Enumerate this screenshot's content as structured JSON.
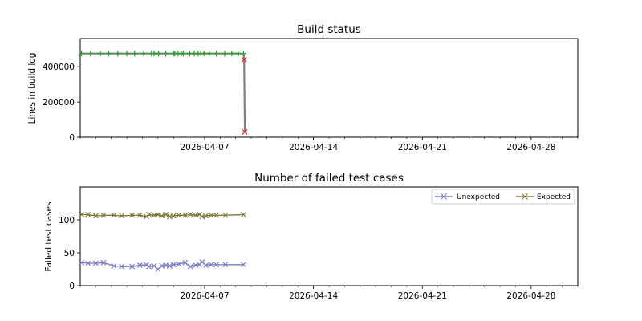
{
  "chart_data": [
    {
      "type": "line",
      "title": "Build status",
      "xlabel": "",
      "ylabel": "Lines in build log",
      "xlim": [
        "2026-03-30",
        "2026-05-01"
      ],
      "ylim": [
        0,
        560000
      ],
      "yticks": [
        0,
        200000,
        400000
      ],
      "xticks": [
        "2026-04-07",
        "2026-04-14",
        "2026-04-21",
        "2026-04-28"
      ],
      "grid": false,
      "colors": {
        "ok": "#2ca02c",
        "failed": "#d62728",
        "line": "#808080"
      },
      "series": [
        {
          "marker": "plus",
          "color": "#2ca02c",
          "points": [
            [
              "2026-03-30T02:00",
              475000
            ],
            [
              "2026-03-30T16:00",
              475000
            ],
            [
              "2026-03-31T07:00",
              475000
            ],
            [
              "2026-03-31T20:00",
              475000
            ],
            [
              "2026-04-01T10:00",
              475000
            ],
            [
              "2026-04-02T00:00",
              475000
            ],
            [
              "2026-04-02T12:00",
              475000
            ],
            [
              "2026-04-03T02:00",
              475000
            ],
            [
              "2026-04-03T14:00",
              475000
            ],
            [
              "2026-04-03T18:00",
              475000
            ],
            [
              "2026-04-04T01:00",
              475000
            ],
            [
              "2026-04-04T12:00",
              475000
            ],
            [
              "2026-04-05T00:00",
              475000
            ],
            [
              "2026-04-05T02:00",
              475000
            ],
            [
              "2026-04-05T07:00",
              475000
            ],
            [
              "2026-04-05T12:00",
              475000
            ],
            [
              "2026-04-05T15:00",
              475000
            ],
            [
              "2026-04-06T01:00",
              475000
            ],
            [
              "2026-04-06T08:00",
              475000
            ],
            [
              "2026-04-06T14:00",
              475000
            ],
            [
              "2026-04-06T18:00",
              475000
            ],
            [
              "2026-04-06T23:00",
              475000
            ],
            [
              "2026-04-07T07:00",
              475000
            ],
            [
              "2026-04-07T18:00",
              475000
            ],
            [
              "2026-04-08T07:00",
              475000
            ],
            [
              "2026-04-08T18:00",
              475000
            ],
            [
              "2026-04-09T04:00",
              475000
            ],
            [
              "2026-04-09T12:00",
              475000
            ]
          ]
        },
        {
          "marker": "x",
          "color": "#d62728",
          "points": [
            [
              "2026-04-09T13:00",
              440000
            ],
            [
              "2026-04-09T14:00",
              30000
            ]
          ]
        }
      ]
    },
    {
      "type": "line",
      "title": "Number of failed test cases",
      "xlabel": "",
      "ylabel": "Failed test cases",
      "xlim": [
        "2026-03-30",
        "2026-05-01"
      ],
      "ylim": [
        0,
        150
      ],
      "yticks": [
        0,
        50,
        100
      ],
      "xticks": [
        "2026-04-07",
        "2026-04-14",
        "2026-04-21",
        "2026-04-28"
      ],
      "grid": false,
      "legend": "top-right",
      "series": [
        {
          "name": "Unexpected",
          "color": "#7b7bc8",
          "marker": "x",
          "points": [
            [
              "2026-03-30T02:00",
              35
            ],
            [
              "2026-03-30T12:00",
              34
            ],
            [
              "2026-03-31T00:00",
              34
            ],
            [
              "2026-03-31T12:00",
              35
            ],
            [
              "2026-04-01T04:00",
              30
            ],
            [
              "2026-04-01T16:00",
              29
            ],
            [
              "2026-04-02T08:00",
              29
            ],
            [
              "2026-04-02T20:00",
              31
            ],
            [
              "2026-04-03T06:00",
              32
            ],
            [
              "2026-04-03T10:00",
              29
            ],
            [
              "2026-04-03T18:00",
              30
            ],
            [
              "2026-04-04T00:00",
              25
            ],
            [
              "2026-04-04T06:00",
              30
            ],
            [
              "2026-04-04T12:00",
              31
            ],
            [
              "2026-04-04T18:00",
              30
            ],
            [
              "2026-04-05T00:00",
              32
            ],
            [
              "2026-04-05T08:00",
              33
            ],
            [
              "2026-04-05T18:00",
              35
            ],
            [
              "2026-04-06T02:00",
              29
            ],
            [
              "2026-04-06T10:00",
              31
            ],
            [
              "2026-04-06T16:00",
              32
            ],
            [
              "2026-04-06T20:00",
              36
            ],
            [
              "2026-04-07T02:00",
              31
            ],
            [
              "2026-04-07T10:00",
              32
            ],
            [
              "2026-04-07T18:00",
              32
            ],
            [
              "2026-04-08T08:00",
              32
            ],
            [
              "2026-04-09T12:00",
              32
            ]
          ]
        },
        {
          "name": "Expected",
          "color": "#7b7b3c",
          "marker": "x",
          "points": [
            [
              "2026-03-30T02:00",
              108
            ],
            [
              "2026-03-30T12:00",
              108
            ],
            [
              "2026-03-31T00:00",
              106
            ],
            [
              "2026-03-31T12:00",
              107
            ],
            [
              "2026-04-01T04:00",
              107
            ],
            [
              "2026-04-01T16:00",
              106
            ],
            [
              "2026-04-02T08:00",
              107
            ],
            [
              "2026-04-02T20:00",
              107
            ],
            [
              "2026-04-03T06:00",
              105
            ],
            [
              "2026-04-03T10:00",
              108
            ],
            [
              "2026-04-03T18:00",
              107
            ],
            [
              "2026-04-04T00:00",
              108
            ],
            [
              "2026-04-04T06:00",
              106
            ],
            [
              "2026-04-04T12:00",
              108
            ],
            [
              "2026-04-04T18:00",
              105
            ],
            [
              "2026-04-05T00:00",
              106
            ],
            [
              "2026-04-05T08:00",
              107
            ],
            [
              "2026-04-05T18:00",
              107
            ],
            [
              "2026-04-06T02:00",
              108
            ],
            [
              "2026-04-06T10:00",
              107
            ],
            [
              "2026-04-06T16:00",
              108
            ],
            [
              "2026-04-06T20:00",
              105
            ],
            [
              "2026-04-07T02:00",
              106
            ],
            [
              "2026-04-07T10:00",
              107
            ],
            [
              "2026-04-07T18:00",
              107
            ],
            [
              "2026-04-08T08:00",
              107
            ],
            [
              "2026-04-09T12:00",
              108
            ]
          ]
        }
      ]
    }
  ]
}
